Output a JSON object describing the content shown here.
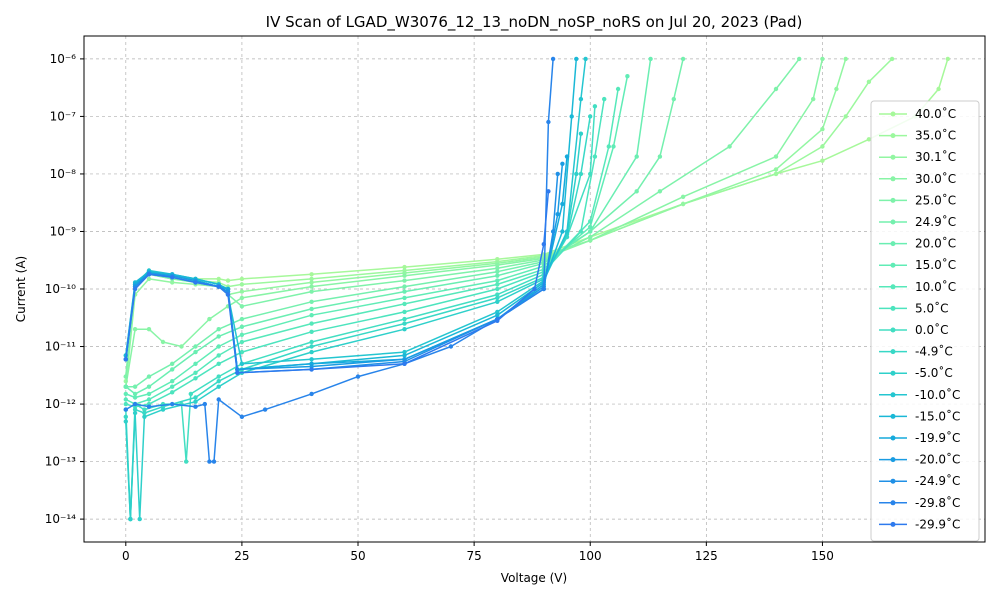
{
  "chart_data": {
    "type": "line",
    "title": "IV Scan of LGAD_W3076_12_13_noDN_noSP_noRS on Jul 20, 2023 (Pad)",
    "xlabel": "Voltage (V)",
    "ylabel": "Current (A)",
    "xlim": [
      -9,
      185
    ],
    "ylim": [
      4e-15,
      2.5e-06
    ],
    "yscale": "log",
    "grid": true,
    "legend_position": "right",
    "x_ticks": [
      0,
      25,
      50,
      75,
      100,
      125,
      150
    ],
    "y_ticks": [
      {
        "value": 1e-14,
        "label": "10⁻¹⁴"
      },
      {
        "value": 1e-13,
        "label": "10⁻¹³"
      },
      {
        "value": 1e-12,
        "label": "10⁻¹²"
      },
      {
        "value": 1e-11,
        "label": "10⁻¹¹"
      },
      {
        "value": 1e-10,
        "label": "10⁻¹⁰"
      },
      {
        "value": 1e-09,
        "label": "10⁻⁹"
      },
      {
        "value": 1e-08,
        "label": "10⁻⁸"
      },
      {
        "value": 1e-07,
        "label": "10⁻⁷"
      },
      {
        "value": 1e-06,
        "label": "10⁻⁶"
      }
    ],
    "series": [
      {
        "name": "40.0˚C",
        "color": "#a6f89a",
        "x": [
          0,
          2,
          5,
          10,
          15,
          20,
          22,
          25,
          40,
          60,
          80,
          90,
          100,
          120,
          140,
          150,
          160,
          170,
          175,
          177
        ],
        "y": [
          3e-12,
          1.2e-10,
          2e-10,
          1.6e-10,
          1.5e-10,
          1.5e-10,
          1.4e-10,
          1.5e-10,
          1.8e-10,
          2.4e-10,
          3.3e-10,
          4e-10,
          8e-10,
          3e-09,
          1e-08,
          1.7e-08,
          4e-08,
          1e-07,
          3e-07,
          1e-06
        ]
      },
      {
        "name": "35.0˚C",
        "color": "#9cf89e",
        "x": [
          0,
          2,
          5,
          10,
          15,
          20,
          22,
          25,
          40,
          60,
          80,
          90,
          100,
          120,
          140,
          150,
          155,
          160,
          165
        ],
        "y": [
          2.5e-12,
          1e-10,
          1.8e-10,
          1.5e-10,
          1.4e-10,
          1.3e-10,
          1.1e-10,
          1.2e-10,
          1.5e-10,
          2.1e-10,
          3e-10,
          3.8e-10,
          7e-10,
          3e-09,
          1e-08,
          3e-08,
          1e-07,
          4e-07,
          1e-06
        ]
      },
      {
        "name": "30.1˚C",
        "color": "#92f6a2",
        "x": [
          0,
          2,
          5,
          10,
          15,
          20,
          22,
          25,
          40,
          60,
          80,
          90,
          100,
          120,
          140,
          150,
          153,
          155
        ],
        "y": [
          2e-12,
          8e-11,
          1.5e-10,
          1.3e-10,
          1.2e-10,
          1.1e-10,
          8e-11,
          9e-11,
          1.3e-10,
          1.9e-10,
          2.8e-10,
          3.6e-10,
          7e-10,
          3e-09,
          1.2e-08,
          6e-08,
          3e-07,
          1e-06
        ]
      },
      {
        "name": "30.0˚C",
        "color": "#88f4a6",
        "x": [
          0,
          2,
          5,
          8,
          12,
          18,
          22,
          25,
          40,
          60,
          80,
          90,
          100,
          120,
          140,
          148,
          150
        ],
        "y": [
          2e-12,
          2e-11,
          2e-11,
          1.2e-11,
          1e-11,
          3e-11,
          5e-11,
          7e-11,
          1.1e-10,
          1.7e-10,
          2.6e-10,
          3.4e-10,
          7e-10,
          4e-09,
          2e-08,
          2e-07,
          1e-06
        ]
      },
      {
        "name": "25.0˚C",
        "color": "#7ef2aa",
        "x": [
          0,
          2,
          5,
          10,
          15,
          20,
          25,
          40,
          60,
          80,
          90,
          100,
          115,
          130,
          140,
          145
        ],
        "y": [
          3e-12,
          1.2e-10,
          1.8e-10,
          1.5e-10,
          1.3e-10,
          1.1e-10,
          5e-11,
          9e-11,
          1.4e-10,
          2.3e-10,
          3.2e-10,
          8e-10,
          5e-09,
          3e-08,
          3e-07,
          1e-06
        ]
      },
      {
        "name": "24.9˚C",
        "color": "#74f0ae",
        "x": [
          0,
          2,
          5,
          10,
          15,
          20,
          25,
          40,
          60,
          80,
          90,
          100,
          110,
          115,
          118,
          120
        ],
        "y": [
          2e-12,
          2e-12,
          3e-12,
          5e-12,
          1e-11,
          2e-11,
          3e-11,
          6e-11,
          1.1e-10,
          2e-10,
          3e-10,
          1e-09,
          5e-09,
          2e-08,
          2e-07,
          1e-06
        ]
      },
      {
        "name": "20.0˚C",
        "color": "#6aeeb2",
        "x": [
          0,
          2,
          5,
          10,
          15,
          20,
          25,
          40,
          60,
          80,
          90,
          100,
          110,
          113
        ],
        "y": [
          2e-12,
          1.5e-12,
          2e-12,
          4e-12,
          8e-12,
          1.5e-11,
          2.2e-11,
          4.5e-11,
          9e-11,
          1.7e-10,
          2.8e-10,
          1e-09,
          2e-08,
          1e-06
        ]
      },
      {
        "name": "15.0˚C",
        "color": "#60ecb6",
        "x": [
          0,
          2,
          5,
          10,
          15,
          20,
          25,
          40,
          60,
          80,
          90,
          100,
          105,
          108
        ],
        "y": [
          1.5e-12,
          1.3e-12,
          1.5e-12,
          2.5e-12,
          5e-12,
          1e-11,
          1.6e-11,
          3.5e-11,
          7e-11,
          1.4e-10,
          2.5e-10,
          1.2e-09,
          3e-08,
          5e-07
        ]
      },
      {
        "name": "10.0˚C",
        "color": "#56e8ba",
        "x": [
          0,
          2,
          5,
          10,
          15,
          20,
          25,
          40,
          60,
          80,
          90,
          100,
          104,
          106
        ],
        "y": [
          1.2e-12,
          1e-12,
          1.2e-12,
          2e-12,
          3.5e-12,
          7e-12,
          1.2e-11,
          2.5e-11,
          5.5e-11,
          1.2e-10,
          2.2e-10,
          1.5e-09,
          3e-08,
          3e-07
        ]
      },
      {
        "name": "5.0˚C",
        "color": "#4ce4be",
        "x": [
          0,
          2,
          5,
          10,
          15,
          20,
          25,
          40,
          60,
          80,
          90,
          98,
          101,
          103
        ],
        "y": [
          1e-12,
          9e-13,
          1e-12,
          1.6e-12,
          2.8e-12,
          5e-12,
          8e-12,
          1.8e-11,
          4e-11,
          1e-10,
          2e-10,
          1e-09,
          2e-08,
          2e-07
        ]
      },
      {
        "name": "0.0˚C",
        "color": "#42dec2",
        "x": [
          0,
          1,
          2,
          4,
          8,
          12,
          13,
          14,
          20,
          25,
          40,
          60,
          80,
          90,
          95,
          100,
          101
        ],
        "y": [
          8e-13,
          1e-14,
          1e-12,
          8e-13,
          1e-12,
          1e-12,
          1e-13,
          1.5e-12,
          3e-12,
          5e-12,
          1.2e-11,
          3e-11,
          8e-11,
          1.8e-10,
          8e-10,
          1e-08,
          1.5e-07
        ]
      },
      {
        "name": "-4.9˚C",
        "color": "#38d8c6",
        "x": [
          0,
          1,
          2,
          4,
          8,
          15,
          20,
          25,
          40,
          60,
          80,
          90,
          95,
          98,
          100
        ],
        "y": [
          6e-13,
          1e-14,
          8e-13,
          7e-13,
          9e-13,
          1.3e-12,
          2.5e-12,
          4e-12,
          1e-11,
          2.5e-11,
          7e-11,
          1.6e-10,
          8e-10,
          1e-08,
          1e-07
        ]
      },
      {
        "name": "-5.0˚C",
        "color": "#2ed0ca",
        "x": [
          0,
          1,
          2,
          3,
          4,
          8,
          15,
          20,
          25,
          40,
          60,
          80,
          90,
          95,
          97,
          98
        ],
        "y": [
          5e-13,
          1e-14,
          7e-13,
          1e-14,
          6e-13,
          8e-13,
          1.1e-12,
          2e-12,
          3.5e-12,
          8e-12,
          2e-11,
          6e-11,
          1.5e-10,
          9e-10,
          1e-08,
          5e-08
        ]
      },
      {
        "name": "-10.0˚C",
        "color": "#24c6d0",
        "x": [
          0,
          2,
          5,
          10,
          15,
          20,
          22,
          25,
          40,
          60,
          80,
          90,
          95,
          98,
          99
        ],
        "y": [
          7e-12,
          1.2e-10,
          2.1e-10,
          1.8e-10,
          1.5e-10,
          1.2e-10,
          8e-11,
          5e-12,
          6e-12,
          8e-12,
          4e-11,
          1.4e-10,
          1e-09,
          2e-07,
          1e-06
        ]
      },
      {
        "name": "-15.0˚C",
        "color": "#1ab8d6",
        "x": [
          0,
          2,
          5,
          10,
          15,
          20,
          22,
          24,
          40,
          60,
          80,
          90,
          94,
          96,
          97
        ],
        "y": [
          7e-12,
          1.3e-10,
          2e-10,
          1.8e-10,
          1.5e-10,
          1.2e-10,
          1e-10,
          4e-12,
          5e-12,
          7e-12,
          3.5e-11,
          1.3e-10,
          1e-09,
          1e-07,
          1e-06
        ]
      },
      {
        "name": "-19.9˚C",
        "color": "#16aadc",
        "x": [
          0,
          2,
          5,
          10,
          15,
          20,
          22,
          24,
          40,
          60,
          80,
          90,
          94,
          95
        ],
        "y": [
          6e-12,
          1.2e-10,
          1.9e-10,
          1.7e-10,
          1.4e-10,
          1.1e-10,
          1e-10,
          4e-12,
          5e-12,
          6e-12,
          3e-11,
          1.2e-10,
          3e-09,
          2e-08
        ]
      },
      {
        "name": "-20.0˚C",
        "color": "#1a9ce2",
        "x": [
          0,
          2,
          5,
          10,
          15,
          20,
          22,
          24,
          40,
          60,
          80,
          90,
          93,
          94
        ],
        "y": [
          6e-12,
          1.1e-10,
          1.9e-10,
          1.7e-10,
          1.4e-10,
          1.1e-10,
          9e-11,
          4e-12,
          4.5e-12,
          6e-12,
          3e-11,
          1.1e-10,
          2e-09,
          1.5e-08
        ]
      },
      {
        "name": "-24.9˚C",
        "color": "#2090e6",
        "x": [
          0,
          2,
          5,
          10,
          15,
          20,
          22,
          24,
          40,
          60,
          80,
          90,
          92,
          93
        ],
        "y": [
          6e-12,
          1.1e-10,
          1.8e-10,
          1.6e-10,
          1.3e-10,
          1.1e-10,
          9e-11,
          3.5e-12,
          4e-12,
          5.5e-12,
          3e-11,
          1e-10,
          1e-09,
          1e-08
        ]
      },
      {
        "name": "-29.8˚C",
        "color": "#2884ea",
        "x": [
          0,
          2,
          5,
          10,
          15,
          17,
          18,
          19,
          20,
          25,
          30,
          40,
          50,
          60,
          70,
          80,
          90,
          91,
          92
        ],
        "y": [
          8e-13,
          1e-12,
          9e-13,
          1e-12,
          9e-13,
          1e-12,
          1e-13,
          1e-13,
          1.2e-12,
          6e-13,
          8e-13,
          1.5e-12,
          3e-12,
          5e-12,
          1e-11,
          3e-11,
          1e-10,
          8e-08,
          1e-06
        ]
      },
      {
        "name": "-29.9˚C",
        "color": "#2e7aee",
        "x": [
          0,
          2,
          5,
          10,
          15,
          20,
          22,
          24,
          40,
          60,
          80,
          88,
          90,
          91
        ],
        "y": [
          6e-12,
          1e-10,
          1.8e-10,
          1.6e-10,
          1.3e-10,
          1.1e-10,
          8e-11,
          3.5e-12,
          4e-12,
          5e-12,
          2.8e-11,
          1e-10,
          6e-10,
          5e-09
        ]
      }
    ]
  }
}
